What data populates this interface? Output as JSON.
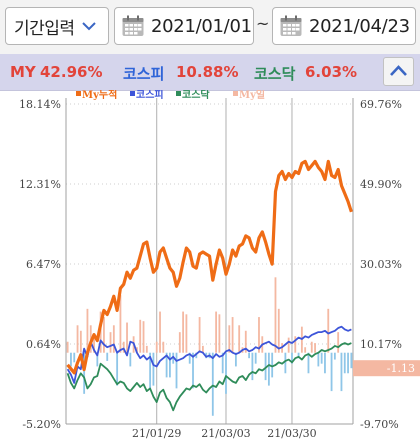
{
  "filter": {
    "period_label": "기간입력",
    "start_date": "2021/01/01",
    "separator": "~",
    "end_date": "2021/04/23"
  },
  "summary": {
    "my_label": "MY",
    "my_value": "42.96%",
    "kospi_label": "코스피",
    "kospi_value": "10.88%",
    "kosdaq_label": "코스닥",
    "kosdaq_value": "6.03%"
  },
  "colors": {
    "my": "#ef6c16",
    "kospi": "#3d55d9",
    "kosdaq": "#2f8c5a",
    "my_daily_pos": "#f4b8a2",
    "my_daily_neg": "#8fc6e8",
    "summary_my_label": "#e2443a",
    "summary_value": "#e2443a",
    "summary_kospi_label": "#2f64d8",
    "summary_kosdaq_label": "#2f8c5a"
  },
  "chart_data": {
    "type": "line",
    "legend": [
      "My누적",
      "코스피",
      "코스닥",
      "My일"
    ],
    "legend_placement": "top",
    "left_axis": {
      "ticks": [
        "18.14%",
        "12.31%",
        "6.47%",
        "0.64%",
        "-5.20%"
      ],
      "range": [
        -5.2,
        18.14
      ]
    },
    "right_axis": {
      "ticks": [
        "69.76%",
        "49.90%",
        "30.03%",
        "10.17%",
        "-9.70%"
      ],
      "range": [
        -9.7,
        69.76
      ]
    },
    "x_ticks": [
      "21/01/29",
      "21/03/03",
      "21/03/30"
    ],
    "current_marker": "-1.13",
    "grid": "horizontal dotted + vertical at x ticks",
    "series": [
      {
        "name": "My누적",
        "axis": "right",
        "values": [
          5.0,
          4.0,
          3.0,
          5.5,
          7.5,
          3.8,
          8.0,
          10.5,
          12.5,
          11.0,
          15.0,
          18.5,
          17.5,
          19.5,
          22.0,
          18.5,
          24.0,
          25.0,
          28.0,
          26.5,
          28.5,
          29.0,
          32.0,
          35.0,
          35.5,
          31.5,
          28.0,
          29.0,
          33.0,
          34.0,
          31.5,
          29.0,
          28.0,
          24.5,
          26.5,
          30.5,
          34.0,
          33.0,
          29.5,
          29.0,
          32.5,
          33.0,
          32.5,
          32.0,
          26.0,
          30.0,
          33.5,
          31.5,
          27.5,
          30.0,
          33.5,
          32.0,
          34.5,
          35.0,
          37.0,
          36.5,
          34.0,
          33.0,
          36.5,
          38.0,
          35.5,
          32.5,
          30.0,
          48.0,
          52.0,
          53.0,
          51.0,
          52.5,
          51.5,
          53.0,
          52.5,
          55.0,
          55.5,
          53.5,
          54.5,
          55.5,
          54.0,
          53.0,
          51.0,
          55.5,
          52.0,
          51.5,
          53.5,
          49.5,
          47.5,
          45.5,
          42.96
        ]
      },
      {
        "name": "코스피",
        "axis": "left",
        "values": [
          -1.2,
          -1.6,
          -2.2,
          -1.0,
          -1.2,
          0.3,
          -0.3,
          0.8,
          0.2,
          -0.2,
          0.9,
          0.6,
          0.4,
          0.5,
          0.6,
          0.0,
          0.2,
          0.3,
          -0.2,
          0.8,
          0.7,
          0.0,
          -0.4,
          -0.2,
          -0.5,
          -0.3,
          -0.9,
          -1.0,
          -0.6,
          -0.4,
          -0.2,
          -0.5,
          -0.3,
          -0.6,
          -0.5,
          -0.4,
          -0.2,
          -0.1,
          -0.3,
          -0.1,
          0.1,
          0.0,
          -0.3,
          -0.2,
          -0.4,
          -0.1,
          -0.3,
          -0.2,
          0.1,
          0.2,
          0.0,
          -0.1,
          0.0,
          0.2,
          0.3,
          0.1,
          0.2,
          0.4,
          0.3,
          0.6,
          0.7,
          0.8,
          0.6,
          0.5,
          0.3,
          0.4,
          0.6,
          0.8,
          0.7,
          0.9,
          1.1,
          1.0,
          1.2,
          1.1,
          1.3,
          1.4,
          1.5,
          1.5,
          1.6,
          1.4,
          1.5,
          1.6,
          1.8,
          1.9,
          1.7,
          1.6,
          1.7
        ]
      },
      {
        "name": "코스닥",
        "axis": "left",
        "values": [
          -1.5,
          -2.2,
          -2.6,
          -2.0,
          -1.5,
          -1.8,
          -2.6,
          -2.3,
          -1.8,
          -1.7,
          -0.8,
          -1.0,
          -1.2,
          -1.5,
          -1.9,
          -2.3,
          -2.1,
          -2.2,
          -2.6,
          -2.8,
          -2.5,
          -2.2,
          -2.5,
          -2.3,
          -2.8,
          -2.6,
          -3.2,
          -3.6,
          -2.9,
          -2.7,
          -3.3,
          -3.6,
          -4.2,
          -3.6,
          -3.2,
          -2.9,
          -2.6,
          -2.7,
          -2.4,
          -2.5,
          -2.3,
          -2.7,
          -2.9,
          -2.6,
          -2.4,
          -2.5,
          -2.1,
          -2.3,
          -1.7,
          -1.9,
          -2.1,
          -2.2,
          -1.8,
          -1.7,
          -2.0,
          -1.6,
          -1.4,
          -1.5,
          -1.2,
          -1.3,
          -1.1,
          -0.9,
          -1.0,
          -0.9,
          -0.7,
          -0.8,
          -0.6,
          -0.5,
          -0.7,
          -0.4,
          -0.3,
          -0.5,
          -0.2,
          -0.1,
          -0.3,
          -0.1,
          0.0,
          0.2,
          0.1,
          0.2,
          0.3,
          0.5,
          0.4,
          0.6,
          0.7,
          0.6,
          0.7
        ]
      },
      {
        "name": "My일",
        "axis": "left",
        "type": "bar",
        "values": [
          0.8,
          -1.0,
          -0.7,
          2.0,
          1.6,
          -3.0,
          3.2,
          2.0,
          1.4,
          -1.0,
          3.0,
          2.6,
          -0.6,
          1.5,
          2.0,
          -2.4,
          4.2,
          0.8,
          2.2,
          -1.0,
          1.2,
          0.4,
          2.4,
          2.3,
          0.5,
          -2.6,
          -2.4,
          0.8,
          3.0,
          0.8,
          -1.8,
          -1.8,
          -0.8,
          -2.6,
          1.5,
          3.0,
          2.8,
          -0.8,
          -2.6,
          -0.4,
          2.6,
          0.5,
          -0.4,
          -0.4,
          -4.6,
          3.0,
          2.8,
          -1.5,
          -3.0,
          2.0,
          2.6,
          -1.0,
          2.0,
          0.4,
          1.6,
          -0.4,
          -2.0,
          -0.8,
          2.6,
          1.2,
          -2.0,
          -2.4,
          -1.8,
          5.5,
          3.2,
          0.7,
          -1.5,
          1.1,
          -0.8,
          1.2,
          -0.4,
          1.9,
          0.4,
          -1.5,
          0.8,
          0.7,
          -1.0,
          -0.8,
          -1.5,
          3.2,
          -2.8,
          -0.5,
          1.5,
          -2.8,
          -1.5,
          -1.5,
          -1.13
        ]
      }
    ]
  }
}
